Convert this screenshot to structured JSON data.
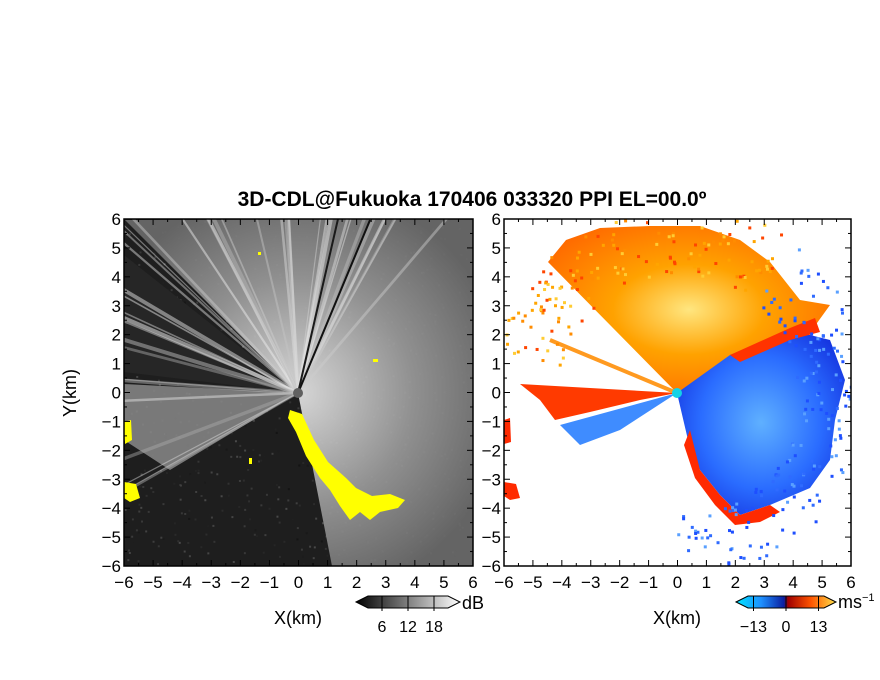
{
  "title": "3D-CDL@Fukuoka 170406 033320 PPI EL=00.0º",
  "colors": {
    "reflectivity_dark": "#1e1e1e",
    "reflectivity_bright": "#d8d8d8",
    "reflectivity_highlight": "#ffff00",
    "velocity_blue": "#1e4fff",
    "velocity_lightblue": "#5aa0ff",
    "velocity_red": "#ff2a00",
    "velocity_orange": "#ff8c00",
    "velocity_yellow": "#ffe14a",
    "radar_center": "#14d2e6"
  },
  "chart_data": [
    {
      "type": "heatmap",
      "panel": "reflectivity",
      "xlabel": "X(km)",
      "ylabel": "Y(km)",
      "xlim": [
        -6,
        6
      ],
      "ylim": [
        -6,
        6
      ],
      "x_ticks": [
        -6,
        -5,
        -4,
        -3,
        -2,
        -1,
        0,
        1,
        2,
        3,
        4,
        5,
        6
      ],
      "y_ticks": [
        -6,
        -5,
        -4,
        -3,
        -2,
        -1,
        0,
        1,
        2,
        3,
        4,
        5,
        6
      ],
      "colorbar": {
        "unit": "dB",
        "ticks": [
          "6",
          "12",
          "18"
        ],
        "range": [
          0,
          24
        ]
      }
    },
    {
      "type": "heatmap",
      "panel": "radial_velocity",
      "xlabel": "X(km)",
      "ylabel": "",
      "xlim": [
        -6,
        6
      ],
      "ylim": [
        -6,
        6
      ],
      "x_ticks": [
        -6,
        -5,
        -4,
        -3,
        -2,
        -1,
        0,
        1,
        2,
        3,
        4,
        5,
        6
      ],
      "y_ticks": [
        -6,
        -5,
        -4,
        -3,
        -2,
        -1,
        0,
        1,
        2,
        3,
        4,
        5,
        6
      ],
      "colorbar": {
        "unit": "ms",
        "unit_exponent": "−1",
        "ticks": [
          "−13",
          "0",
          "13"
        ],
        "range": [
          -20,
          20
        ]
      }
    }
  ]
}
